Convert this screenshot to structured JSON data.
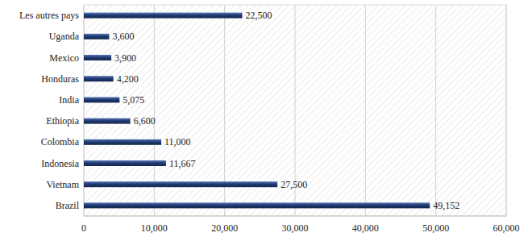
{
  "chart_data": {
    "type": "bar",
    "orientation": "horizontal",
    "categories": [
      "Brazil",
      "Vietnam",
      "Indonesia",
      "Colombia",
      "Ethiopia",
      "India",
      "Honduras",
      "Mexico",
      "Uganda",
      "Les autres pays"
    ],
    "values": [
      49152,
      27500,
      11667,
      11000,
      6600,
      5075,
      4200,
      3900,
      3600,
      22500
    ],
    "value_labels": [
      "49,152",
      "27,500",
      "11,667",
      "11,000",
      "6,600",
      "5,075",
      "4,200",
      "3,900",
      "3,600",
      "22,500"
    ],
    "data_labels": true,
    "color": "#1f3b73",
    "xlim": [
      0,
      60000
    ],
    "xticks": [
      0,
      {
        "value": 10000,
        "label": "10,000"
      },
      {
        "value": 20000,
        "label": "20,000"
      },
      {
        "value": 30000,
        "label": "30,000"
      },
      {
        "value": 40000,
        "label": "40,000"
      },
      {
        "value": 50000,
        "label": "50,000"
      },
      {
        "value": 60000,
        "label": "60,000"
      }
    ],
    "grid": true
  }
}
